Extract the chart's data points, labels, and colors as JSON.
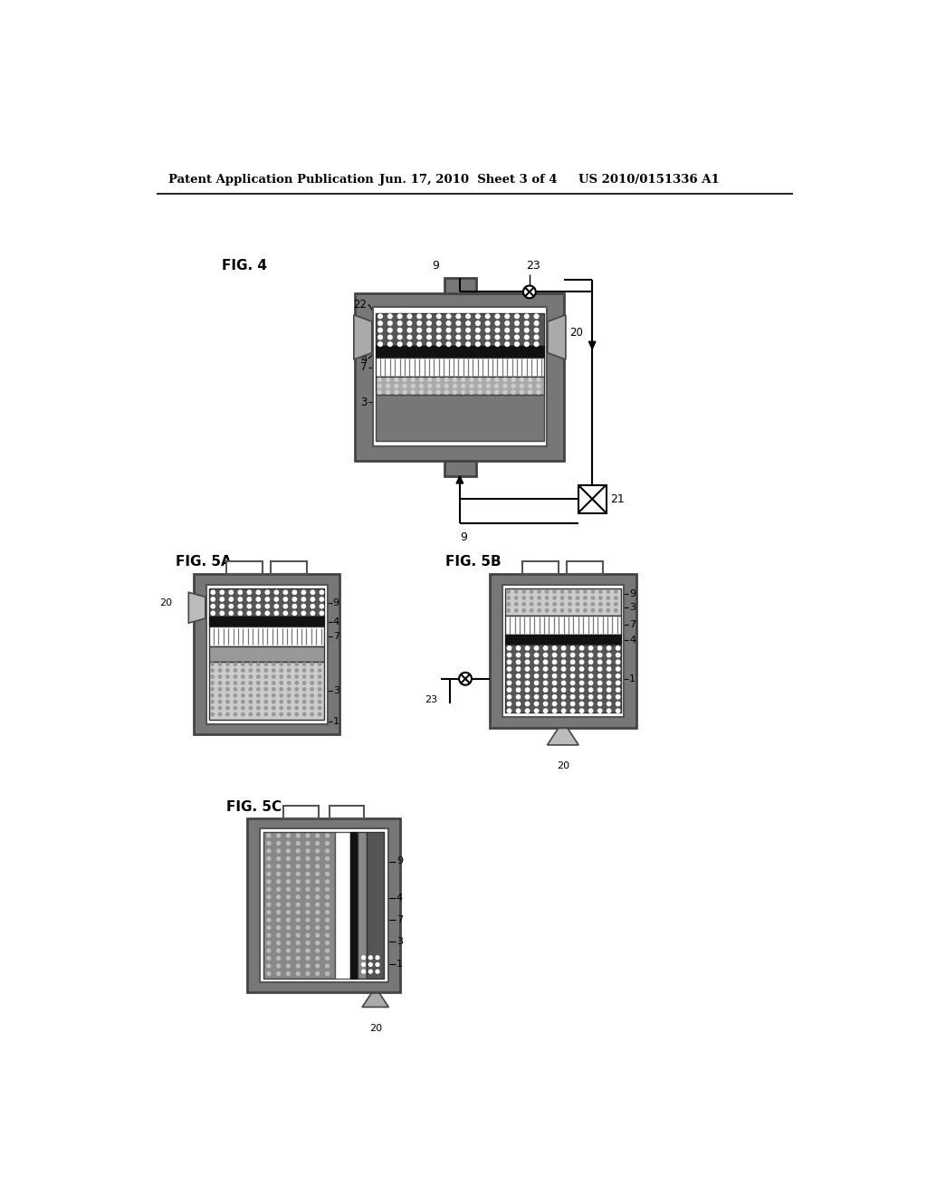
{
  "title_left": "Patent Application Publication",
  "title_mid": "Jun. 17, 2010  Sheet 3 of 4",
  "title_right": "US 2010/0151336 A1",
  "fig4_label": "FIG. 4",
  "fig5a_label": "FIG. 5A",
  "fig5b_label": "FIG. 5B",
  "fig5c_label": "FIG. 5C",
  "bg_color": "#ffffff"
}
